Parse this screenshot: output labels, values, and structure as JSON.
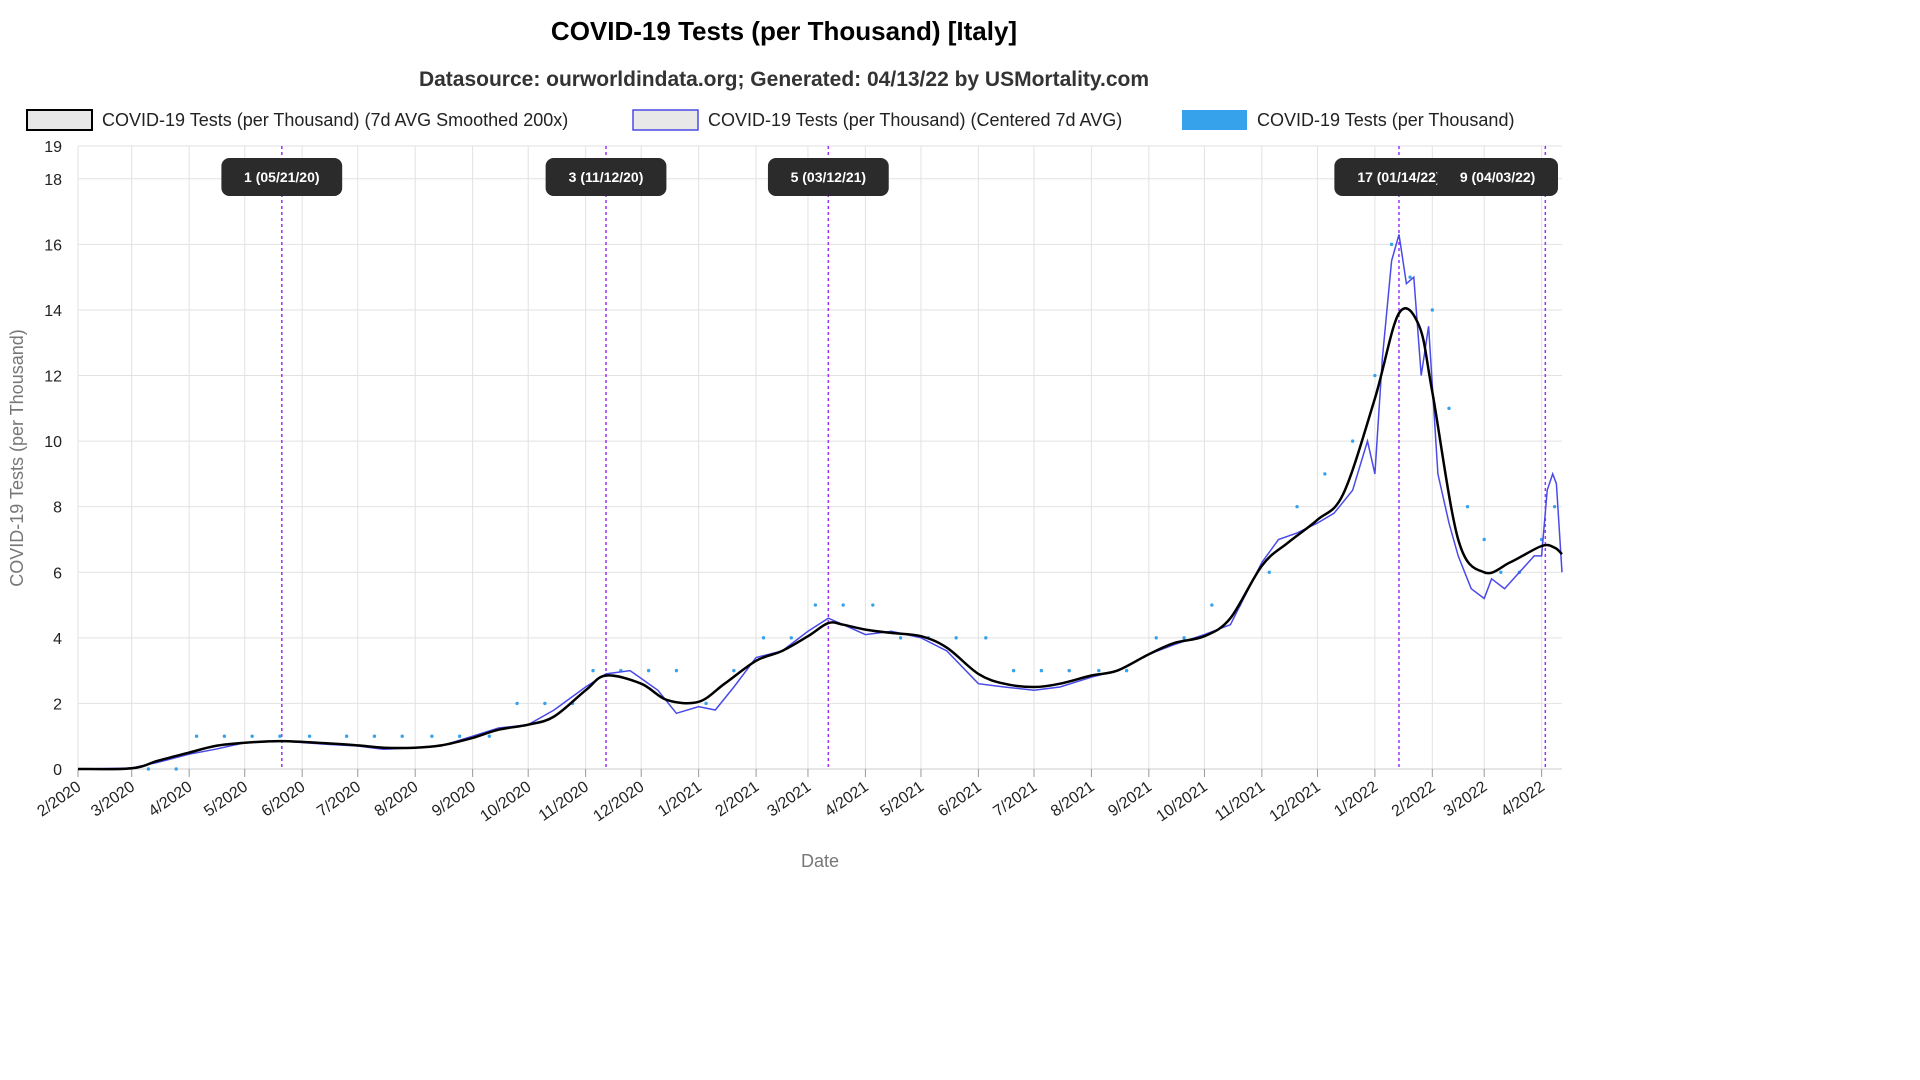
{
  "chart_data": {
    "type": "line",
    "title": "COVID-19 Tests (per Thousand) [Italy]",
    "subtitle": "Datasource: ourworldindata.org; Generated: 04/13/22 by USMortality.com",
    "xlabel": "Date",
    "ylabel": "COVID-19 Tests (per Thousand)",
    "ylim": [
      0,
      19
    ],
    "yticks": [
      0,
      2,
      4,
      6,
      8,
      10,
      12,
      14,
      16,
      18,
      19
    ],
    "xlim": [
      "2020-02-01",
      "2022-04-12"
    ],
    "xticks": [
      "2/2020",
      "3/2020",
      "4/2020",
      "5/2020",
      "6/2020",
      "7/2020",
      "8/2020",
      "9/2020",
      "10/2020",
      "11/2020",
      "12/2020",
      "1/2021",
      "2/2021",
      "3/2021",
      "4/2021",
      "5/2021",
      "6/2021",
      "7/2021",
      "8/2021",
      "9/2021",
      "10/2021",
      "11/2021",
      "12/2021",
      "1/2022",
      "2/2022",
      "3/2022",
      "4/2022"
    ],
    "grid": true,
    "legend_position": "top",
    "colors": {
      "smoothed": "#000000",
      "centered": "#4a4ae8",
      "raw": "#36a2eb",
      "annotation_line": "#9b30ff",
      "annotation_box": "#2b2b2b"
    },
    "series": [
      {
        "name": "COVID-19 Tests (per Thousand) (7d AVG Smoothed 200x)",
        "style": "smooth-line",
        "x": [
          "2020-02-01",
          "2020-03-01",
          "2020-03-15",
          "2020-04-01",
          "2020-04-15",
          "2020-05-01",
          "2020-05-21",
          "2020-06-15",
          "2020-07-01",
          "2020-07-15",
          "2020-08-01",
          "2020-08-15",
          "2020-09-01",
          "2020-09-15",
          "2020-10-01",
          "2020-10-15",
          "2020-11-01",
          "2020-11-12",
          "2020-12-01",
          "2020-12-15",
          "2021-01-01",
          "2021-01-15",
          "2021-02-01",
          "2021-02-15",
          "2021-03-01",
          "2021-03-12",
          "2021-03-20",
          "2021-04-01",
          "2021-04-15",
          "2021-05-01",
          "2021-05-15",
          "2021-06-01",
          "2021-06-15",
          "2021-07-01",
          "2021-07-15",
          "2021-08-01",
          "2021-08-15",
          "2021-09-01",
          "2021-09-15",
          "2021-10-01",
          "2021-10-15",
          "2021-11-01",
          "2021-11-15",
          "2021-12-01",
          "2021-12-15",
          "2022-01-01",
          "2022-01-14",
          "2022-01-25",
          "2022-02-01",
          "2022-02-15",
          "2022-03-01",
          "2022-03-15",
          "2022-04-01",
          "2022-04-08",
          "2022-04-12"
        ],
        "values": [
          0,
          0.02,
          0.25,
          0.5,
          0.7,
          0.8,
          0.85,
          0.78,
          0.72,
          0.65,
          0.65,
          0.72,
          0.95,
          1.2,
          1.35,
          1.6,
          2.4,
          2.85,
          2.6,
          2.1,
          2.05,
          2.6,
          3.3,
          3.6,
          4.05,
          4.45,
          4.4,
          4.25,
          4.15,
          4.05,
          3.7,
          2.9,
          2.6,
          2.5,
          2.6,
          2.85,
          3.0,
          3.5,
          3.85,
          4.05,
          4.6,
          6.2,
          6.9,
          7.6,
          8.4,
          11.3,
          13.9,
          13.5,
          11.5,
          7.0,
          6.0,
          6.3,
          6.8,
          6.75,
          6.55
        ]
      },
      {
        "name": "COVID-19 Tests (per Thousand) (Centered 7d AVG)",
        "style": "jagged-line",
        "x": [
          "2020-02-01",
          "2020-03-01",
          "2020-03-15",
          "2020-04-01",
          "2020-04-15",
          "2020-05-01",
          "2020-05-21",
          "2020-06-15",
          "2020-07-01",
          "2020-07-15",
          "2020-08-01",
          "2020-08-15",
          "2020-09-01",
          "2020-09-15",
          "2020-10-01",
          "2020-10-15",
          "2020-11-01",
          "2020-11-12",
          "2020-11-25",
          "2020-12-10",
          "2020-12-20",
          "2021-01-01",
          "2021-01-10",
          "2021-01-20",
          "2021-02-01",
          "2021-02-15",
          "2021-03-01",
          "2021-03-12",
          "2021-03-20",
          "2021-04-01",
          "2021-04-15",
          "2021-05-01",
          "2021-05-15",
          "2021-06-01",
          "2021-06-15",
          "2021-07-01",
          "2021-07-15",
          "2021-08-01",
          "2021-08-15",
          "2021-09-01",
          "2021-09-15",
          "2021-10-01",
          "2021-10-15",
          "2021-11-01",
          "2021-11-10",
          "2021-11-20",
          "2021-12-01",
          "2021-12-10",
          "2021-12-20",
          "2021-12-28",
          "2022-01-01",
          "2022-01-05",
          "2022-01-10",
          "2022-01-14",
          "2022-01-18",
          "2022-01-22",
          "2022-01-26",
          "2022-01-30",
          "2022-02-04",
          "2022-02-10",
          "2022-02-15",
          "2022-02-22",
          "2022-03-01",
          "2022-03-05",
          "2022-03-12",
          "2022-03-20",
          "2022-03-28",
          "2022-04-01",
          "2022-04-04",
          "2022-04-07",
          "2022-04-09",
          "2022-04-12"
        ],
        "values": [
          0,
          0.03,
          0.2,
          0.45,
          0.6,
          0.8,
          0.85,
          0.75,
          0.7,
          0.6,
          0.65,
          0.7,
          1.0,
          1.25,
          1.35,
          1.8,
          2.5,
          2.9,
          3.0,
          2.4,
          1.7,
          1.9,
          1.8,
          2.5,
          3.4,
          3.6,
          4.2,
          4.6,
          4.4,
          4.1,
          4.2,
          4.0,
          3.6,
          2.6,
          2.5,
          2.4,
          2.5,
          2.8,
          3.0,
          3.5,
          3.8,
          4.1,
          4.4,
          6.3,
          7.0,
          7.2,
          7.5,
          7.8,
          8.5,
          10.0,
          9.0,
          12.5,
          15.5,
          16.3,
          14.8,
          15.0,
          12.0,
          13.5,
          9.0,
          7.5,
          6.5,
          5.5,
          5.2,
          5.8,
          5.5,
          6.0,
          6.5,
          6.5,
          8.5,
          9.0,
          8.7,
          6.0
        ]
      },
      {
        "name": "COVID-19 Tests (per Thousand)",
        "style": "points",
        "x": [
          "2020-03-10",
          "2020-03-25",
          "2020-04-05",
          "2020-04-20",
          "2020-05-05",
          "2020-05-20",
          "2020-06-05",
          "2020-06-25",
          "2020-07-10",
          "2020-07-25",
          "2020-08-10",
          "2020-08-25",
          "2020-09-10",
          "2020-09-25",
          "2020-10-10",
          "2020-10-25",
          "2020-11-05",
          "2020-11-20",
          "2020-12-05",
          "2020-12-20",
          "2021-01-05",
          "2021-01-20",
          "2021-02-05",
          "2021-02-20",
          "2021-03-05",
          "2021-03-20",
          "2021-04-05",
          "2021-04-20",
          "2021-05-05",
          "2021-05-20",
          "2021-06-05",
          "2021-06-20",
          "2021-07-05",
          "2021-07-20",
          "2021-08-05",
          "2021-08-20",
          "2021-09-05",
          "2021-09-20",
          "2021-10-05",
          "2021-10-20",
          "2021-11-05",
          "2021-11-20",
          "2021-12-05",
          "2021-12-20",
          "2022-01-01",
          "2022-01-10",
          "2022-01-20",
          "2022-02-01",
          "2022-02-10",
          "2022-02-20",
          "2022-03-01",
          "2022-03-10",
          "2022-03-20",
          "2022-04-01",
          "2022-04-08"
        ],
        "values": [
          0,
          0,
          1,
          1,
          1,
          1,
          1,
          1,
          1,
          1,
          1,
          1,
          1,
          2,
          2,
          2,
          3,
          3,
          3,
          3,
          2,
          3,
          4,
          4,
          5,
          5,
          5,
          4,
          4,
          4,
          4,
          3,
          3,
          3,
          3,
          3,
          4,
          4,
          5,
          5,
          6,
          8,
          9,
          10,
          12,
          16,
          15,
          14,
          11,
          8,
          7,
          6,
          6,
          7,
          8
        ]
      }
    ],
    "annotations": [
      {
        "x": "2020-05-21",
        "label": "1 (05/21/20)"
      },
      {
        "x": "2020-11-12",
        "label": "3 (11/12/20)"
      },
      {
        "x": "2021-03-12",
        "label": "5 (03/12/21)"
      },
      {
        "x": "2022-01-14",
        "label": "17 (01/14/22)"
      },
      {
        "x": "2022-04-03",
        "label": "9 (04/03/22)"
      }
    ]
  }
}
